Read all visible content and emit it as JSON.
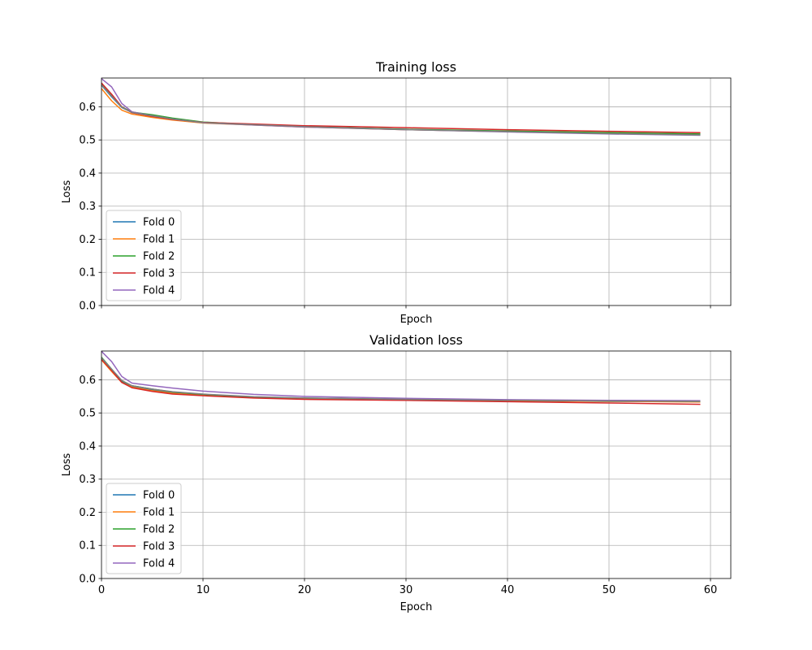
{
  "chart_data": [
    {
      "type": "line",
      "title": "Training loss",
      "xlabel": "Epoch",
      "ylabel": "Loss",
      "xlim": [
        0,
        62
      ],
      "ylim": [
        0,
        0.687
      ],
      "xticks": [
        0,
        10,
        20,
        30,
        40,
        50,
        60
      ],
      "show_x_tick_labels": false,
      "yticks": [
        "0.0",
        "0.1",
        "0.2",
        "0.3",
        "0.4",
        "0.5",
        "0.6"
      ],
      "grid": true,
      "legend_position": "lower-left",
      "x": [
        0,
        1,
        2,
        3,
        5,
        7,
        10,
        15,
        20,
        30,
        40,
        50,
        59
      ],
      "series": [
        {
          "name": "Fold 0",
          "color": "#1f77b4",
          "values": [
            0.665,
            0.63,
            0.598,
            0.583,
            0.574,
            0.565,
            0.553,
            0.546,
            0.54,
            0.532,
            0.526,
            0.52,
            0.516
          ]
        },
        {
          "name": "Fold 1",
          "color": "#ff7f0e",
          "values": [
            0.655,
            0.618,
            0.59,
            0.578,
            0.568,
            0.56,
            0.551,
            0.545,
            0.539,
            0.531,
            0.525,
            0.52,
            0.517
          ]
        },
        {
          "name": "Fold 2",
          "color": "#2ca02c",
          "values": [
            0.668,
            0.633,
            0.6,
            0.584,
            0.576,
            0.566,
            0.554,
            0.546,
            0.54,
            0.532,
            0.527,
            0.522,
            0.518
          ]
        },
        {
          "name": "Fold 3",
          "color": "#d62728",
          "values": [
            0.672,
            0.638,
            0.6,
            0.582,
            0.571,
            0.562,
            0.553,
            0.548,
            0.543,
            0.537,
            0.531,
            0.526,
            0.522
          ]
        },
        {
          "name": "Fold 4",
          "color": "#9467bd",
          "values": [
            0.685,
            0.66,
            0.61,
            0.585,
            0.573,
            0.563,
            0.552,
            0.545,
            0.539,
            0.531,
            0.524,
            0.518,
            0.514
          ]
        }
      ],
      "overlay": {
        "color": "#7f7f7f",
        "values": [
          0.666,
          0.632,
          0.599,
          0.583,
          0.573,
          0.563,
          0.552,
          0.546,
          0.54,
          0.531,
          0.525,
          0.519,
          0.515
        ]
      }
    },
    {
      "type": "line",
      "title": "Validation loss",
      "xlabel": "Epoch",
      "ylabel": "Loss",
      "xlim": [
        0,
        62
      ],
      "ylim": [
        0,
        0.687
      ],
      "xticks": [
        0,
        10,
        20,
        30,
        40,
        50,
        60
      ],
      "show_x_tick_labels": true,
      "yticks": [
        "0.0",
        "0.1",
        "0.2",
        "0.3",
        "0.4",
        "0.5",
        "0.6"
      ],
      "grid": true,
      "legend_position": "lower-left",
      "x": [
        0,
        1,
        2,
        3,
        5,
        7,
        10,
        15,
        20,
        30,
        40,
        50,
        59
      ],
      "series": [
        {
          "name": "Fold 0",
          "color": "#1f77b4",
          "values": [
            0.665,
            0.63,
            0.595,
            0.58,
            0.57,
            0.561,
            0.555,
            0.547,
            0.544,
            0.54,
            0.537,
            0.535,
            0.534
          ]
        },
        {
          "name": "Fold 1",
          "color": "#ff7f0e",
          "values": [
            0.66,
            0.625,
            0.592,
            0.578,
            0.567,
            0.559,
            0.553,
            0.546,
            0.543,
            0.54,
            0.537,
            0.535,
            0.533
          ]
        },
        {
          "name": "Fold 2",
          "color": "#2ca02c",
          "values": [
            0.668,
            0.632,
            0.597,
            0.582,
            0.572,
            0.563,
            0.556,
            0.548,
            0.545,
            0.541,
            0.538,
            0.536,
            0.535
          ]
        },
        {
          "name": "Fold 3",
          "color": "#d62728",
          "values": [
            0.662,
            0.628,
            0.592,
            0.576,
            0.565,
            0.557,
            0.552,
            0.545,
            0.541,
            0.538,
            0.534,
            0.53,
            0.526
          ]
        },
        {
          "name": "Fold 4",
          "color": "#9467bd",
          "values": [
            0.686,
            0.655,
            0.61,
            0.59,
            0.582,
            0.575,
            0.566,
            0.556,
            0.55,
            0.544,
            0.54,
            0.538,
            0.537
          ]
        }
      ],
      "overlay": {
        "color": "#7f7f7f",
        "values": [
          0.666,
          0.632,
          0.598,
          0.582,
          0.572,
          0.564,
          0.557,
          0.549,
          0.545,
          0.541,
          0.538,
          0.536,
          0.535
        ]
      }
    }
  ]
}
